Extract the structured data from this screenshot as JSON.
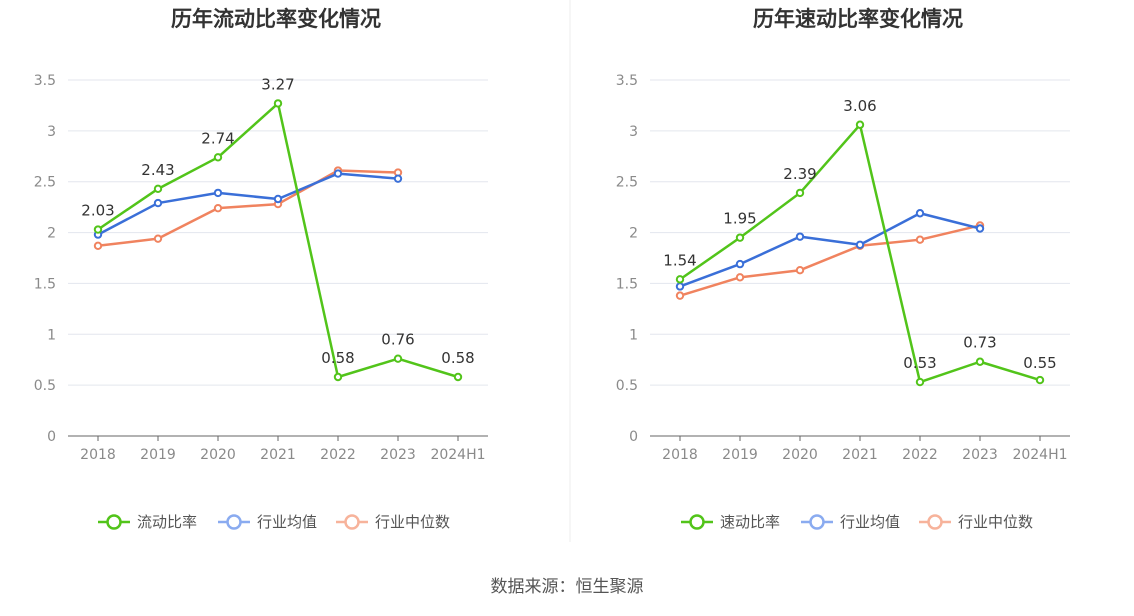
{
  "source_text": "数据来源：恒生聚源",
  "colors": {
    "main": "#52c41a",
    "avg": "#3a6fd8",
    "median": "#f0835f",
    "avg_legend": "#8aabf0",
    "median_legend": "#f7b39b",
    "grid": "#e3e6ee",
    "axis": "#666666"
  },
  "chart_data": [
    {
      "type": "line",
      "title": "历年流动比率变化情况",
      "categories": [
        "2018",
        "2019",
        "2020",
        "2021",
        "2022",
        "2023",
        "2024H1"
      ],
      "ylim": [
        0,
        3.5
      ],
      "yticks": [
        "0",
        "0.5",
        "1",
        "1.5",
        "2",
        "2.5",
        "3",
        "3.5"
      ],
      "grid": true,
      "legend_position": "bottom",
      "series": [
        {
          "name": "流动比率",
          "key": "main",
          "values": [
            2.03,
            2.43,
            2.74,
            3.27,
            0.58,
            0.76,
            0.58
          ],
          "labels": [
            "2.03",
            "2.43",
            "2.74",
            "3.27",
            "0.58",
            "0.76",
            "0.58"
          ]
        },
        {
          "name": "行业均值",
          "key": "avg",
          "values": [
            1.98,
            2.29,
            2.39,
            2.33,
            2.58,
            2.53,
            null
          ]
        },
        {
          "name": "行业中位数",
          "key": "median",
          "values": [
            1.87,
            1.94,
            2.24,
            2.28,
            2.61,
            2.59,
            null
          ]
        }
      ]
    },
    {
      "type": "line",
      "title": "历年速动比率变化情况",
      "categories": [
        "2018",
        "2019",
        "2020",
        "2021",
        "2022",
        "2023",
        "2024H1"
      ],
      "ylim": [
        0,
        3.5
      ],
      "yticks": [
        "0",
        "0.5",
        "1",
        "1.5",
        "2",
        "2.5",
        "3",
        "3.5"
      ],
      "grid": true,
      "legend_position": "bottom",
      "series": [
        {
          "name": "速动比率",
          "key": "main",
          "values": [
            1.54,
            1.95,
            2.39,
            3.06,
            0.53,
            0.73,
            0.55
          ],
          "labels": [
            "1.54",
            "1.95",
            "2.39",
            "3.06",
            "0.53",
            "0.73",
            "0.55"
          ]
        },
        {
          "name": "行业均值",
          "key": "avg",
          "values": [
            1.47,
            1.69,
            1.96,
            1.88,
            2.19,
            2.04,
            null
          ]
        },
        {
          "name": "行业中位数",
          "key": "median",
          "values": [
            1.38,
            1.56,
            1.63,
            1.87,
            1.93,
            2.07,
            null
          ]
        }
      ]
    }
  ]
}
